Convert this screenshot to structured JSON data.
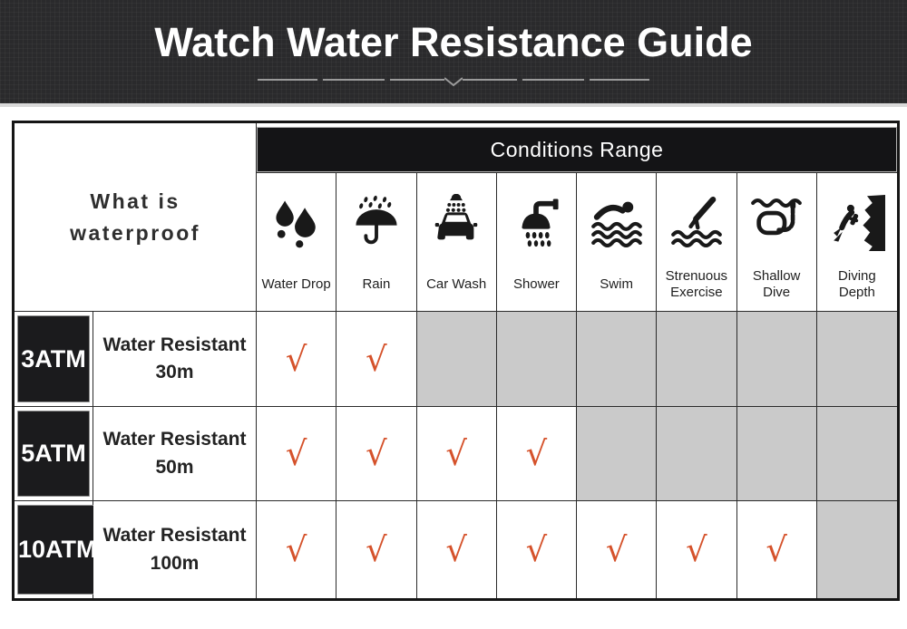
{
  "banner": {
    "title": "Watch Water Resistance Guide"
  },
  "table": {
    "corner_label": "What is waterproof",
    "conditions_header": "Conditions Range",
    "check_glyph": "√",
    "conditions": [
      {
        "label": "Water Drop",
        "icon": "water-drop-icon"
      },
      {
        "label": "Rain",
        "icon": "rain-icon"
      },
      {
        "label": "Car Wash",
        "icon": "car-wash-icon"
      },
      {
        "label": "Shower",
        "icon": "shower-icon"
      },
      {
        "label": "Swim",
        "icon": "swim-icon"
      },
      {
        "label": "Strenuous Exercise",
        "icon": "strenuous-exercise-icon"
      },
      {
        "label": "Shallow Dive",
        "icon": "shallow-dive-icon"
      },
      {
        "label": "Diving Depth",
        "icon": "diving-depth-icon"
      }
    ],
    "rows": [
      {
        "atm": "3ATM",
        "description_line1": "Water Resistant",
        "description_line2": "30m",
        "allowed": [
          true,
          true,
          false,
          false,
          false,
          false,
          false,
          false
        ]
      },
      {
        "atm": "5ATM",
        "description_line1": "Water Resistant",
        "description_line2": "50m",
        "allowed": [
          true,
          true,
          true,
          true,
          false,
          false,
          false,
          false
        ]
      },
      {
        "atm": "10ATM",
        "description_line1": "Water Resistant",
        "description_line2": "100m",
        "allowed": [
          true,
          true,
          true,
          true,
          true,
          true,
          true,
          false
        ]
      }
    ]
  },
  "colors": {
    "accent_check": "#d5522b",
    "disabled_cell": "#cacaca",
    "banner_bg": "#2a2a2c",
    "header_bar_bg": "#141416",
    "atm_cell_bg": "#1b1b1d"
  }
}
